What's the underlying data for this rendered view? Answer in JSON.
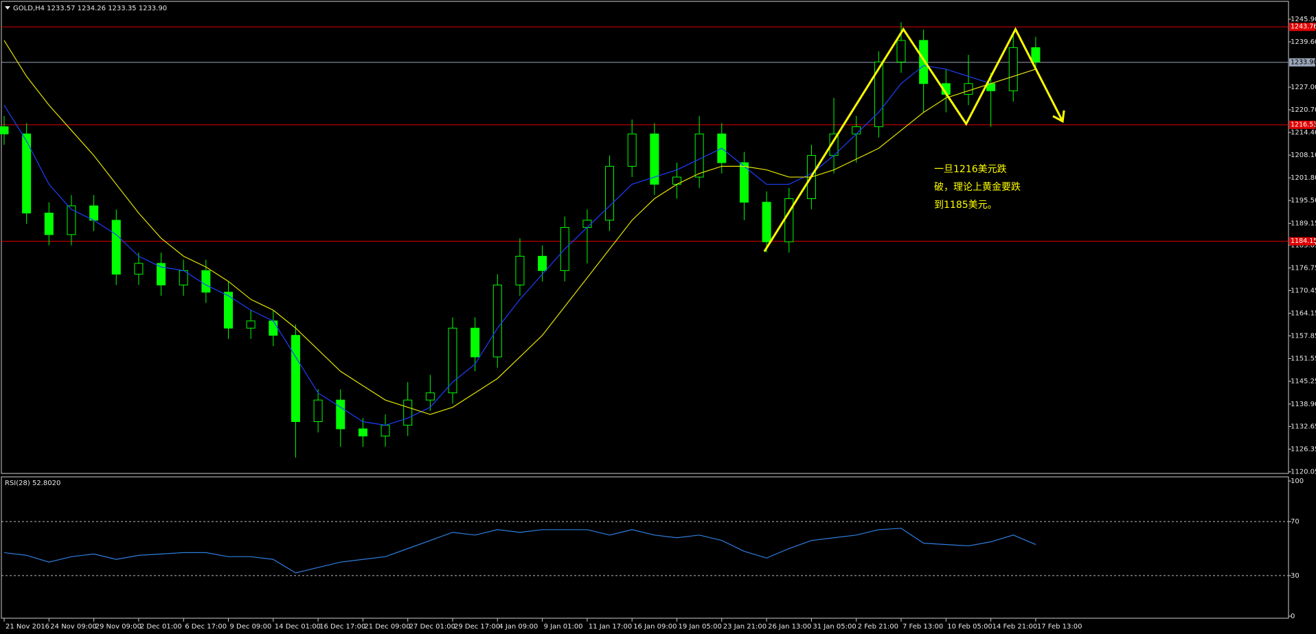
{
  "chart_data": [
    {
      "type": "candlestick",
      "title": "GOLD,H4 1233.57 1234.26 1233.35 1233.90",
      "categories": [
        "21 Nov 2016",
        null,
        "24 Nov 09:00",
        null,
        "29 Nov 09:00",
        null,
        "2 Dec 01:00",
        null,
        "6 Dec 17:00",
        null,
        "9 Dec 09:00",
        null,
        "14 Dec 01:00",
        null,
        "16 Dec 17:00",
        null,
        "21 Dec 09:00",
        null,
        "27 Dec 01:00",
        null,
        "29 Dec 17:00",
        null,
        "4 Jan 09:00",
        null,
        "9 Jan 01:00",
        null,
        "11 Jan 17:00",
        null,
        "16 Jan 09:00",
        null,
        "19 Jan 05:00",
        null,
        "23 Jan 21:00",
        null,
        "26 Jan 13:00",
        null,
        "31 Jan 05:00",
        null,
        "2 Feb 21:00",
        null,
        "7 Feb 13:00",
        null,
        "10 Feb 05:00",
        null,
        "14 Feb 21:00",
        null,
        "17 Feb 13:00"
      ],
      "open": [
        1216,
        1214,
        1192,
        1186,
        1194,
        1190,
        1175,
        1178,
        1172,
        1176,
        1170,
        1160,
        1162,
        1158,
        1134,
        1140,
        1132,
        1130,
        1133,
        1140,
        1142,
        1160,
        1152,
        1172,
        1180,
        1176,
        1188,
        1190,
        1205,
        1214,
        1200,
        1202,
        1214,
        1206,
        1195,
        1184,
        1196,
        1208,
        1214,
        1216,
        1234,
        1240,
        1228,
        1225,
        1228,
        1226,
        1238
      ],
      "high": [
        1219,
        1217,
        1195,
        1197,
        1197,
        1193,
        1181,
        1181,
        1179,
        1179,
        1173,
        1165,
        1165,
        1161,
        1143,
        1143,
        1135,
        1136,
        1145,
        1147,
        1163,
        1163,
        1175,
        1185,
        1183,
        1191,
        1193,
        1208,
        1218,
        1217,
        1206,
        1219,
        1217,
        1209,
        1198,
        1199,
        1211,
        1224,
        1219,
        1237,
        1245,
        1243,
        1232,
        1236,
        1231,
        1242,
        1241
      ],
      "low": [
        1211,
        1189,
        1183,
        1183,
        1187,
        1172,
        1172,
        1169,
        1169,
        1167,
        1157,
        1157,
        1155,
        1124,
        1131,
        1127,
        1127,
        1127,
        1130,
        1137,
        1139,
        1148,
        1149,
        1169,
        1173,
        1173,
        1178,
        1187,
        1202,
        1197,
        1196,
        1199,
        1203,
        1190,
        1181,
        1181,
        1193,
        1203,
        1206,
        1213,
        1231,
        1220,
        1220,
        1222,
        1216,
        1223,
        1232
      ],
      "close": [
        1214,
        1192,
        1186,
        1194,
        1190,
        1175,
        1178,
        1172,
        1176,
        1170,
        1160,
        1162,
        1158,
        1134,
        1140,
        1132,
        1130,
        1133,
        1140,
        1142,
        1160,
        1152,
        1172,
        1180,
        1176,
        1188,
        1190,
        1205,
        1214,
        1200,
        1202,
        1214,
        1206,
        1195,
        1184,
        1196,
        1208,
        1214,
        1216,
        1234,
        1240,
        1228,
        1225,
        1228,
        1226,
        1238,
        1234
      ],
      "up_color": "#00ff00",
      "down_color": "#00ff00",
      "moving_averages": [
        {
          "color": "#1f3fff",
          "values": [
            1222,
            1212,
            1200,
            1193,
            1190,
            1186,
            1180,
            1177,
            1176,
            1172,
            1169,
            1165,
            1162,
            1152,
            1142,
            1138,
            1134,
            1133,
            1135,
            1138,
            1145,
            1150,
            1160,
            1168,
            1175,
            1182,
            1188,
            1194,
            1200,
            1202,
            1204,
            1207,
            1210,
            1205,
            1200,
            1200,
            1203,
            1208,
            1214,
            1220,
            1228,
            1233,
            1232,
            1230,
            1228,
            1230,
            1232
          ]
        },
        {
          "color": "#e6e600",
          "values": [
            1240,
            1230,
            1222,
            1215,
            1208,
            1200,
            1192,
            1185,
            1180,
            1177,
            1173,
            1168,
            1165,
            1160,
            1154,
            1148,
            1144,
            1140,
            1138,
            1136,
            1138,
            1142,
            1146,
            1152,
            1158,
            1166,
            1174,
            1182,
            1190,
            1196,
            1200,
            1203,
            1205,
            1205,
            1204,
            1202,
            1202,
            1204,
            1207,
            1210,
            1215,
            1220,
            1224,
            1226,
            1228,
            1230,
            1232
          ]
        }
      ],
      "hlines": [
        {
          "value": 1243.76,
          "color": "#e00000"
        },
        {
          "value": 1233.9,
          "label": "1233.90",
          "color": "#9aa6b8"
        },
        {
          "value": 1216.53,
          "color": "#e00000"
        },
        {
          "value": 1184.15,
          "color": "#e00000"
        }
      ],
      "pattern": {
        "color": "#ffff00",
        "x": [
          33.9,
          40.1,
          42.9,
          45.1,
          47.2
        ],
        "values": [
          1181.3,
          1243.1,
          1216.8,
          1243.1,
          1217.5
        ]
      },
      "annotations": [
        "一旦1216美元跌",
        "破，理论上黄金要跌",
        "到1185美元。"
      ],
      "ylim": [
        1119.6,
        1247.8
      ],
      "yticks": [
        {
          "value": 1245.9,
          "label": "1245.90"
        },
        {
          "value": 1239.6,
          "label": "1239.60"
        },
        {
          "value": 1227.0,
          "label": "1227.00"
        },
        {
          "value": 1220.7,
          "label": "1220.70"
        },
        {
          "value": 1214.4,
          "label": "1214.40"
        },
        {
          "value": 1208.1,
          "label": "1208.10"
        },
        {
          "value": 1201.8,
          "label": "1201.80"
        },
        {
          "value": 1195.5,
          "label": "1195.50"
        },
        1189.15,
        1183.05,
        1176.75,
        1170.45,
        1164.15,
        1157.85,
        1151.55,
        1145.25,
        {
          "value": 1138.9,
          "label": "1138.90"
        },
        1132.65,
        1126.35,
        1120.05
      ]
    },
    {
      "type": "line",
      "title": "RSI(28) 52.8020",
      "color": "#2f7fe0",
      "values": [
        47,
        45,
        40,
        44,
        46,
        42,
        45,
        46,
        47,
        47,
        44,
        44,
        42,
        32,
        36,
        40,
        42,
        44,
        50,
        56,
        62,
        60,
        64,
        62,
        64,
        64,
        64,
        60,
        64,
        60,
        58,
        60,
        56,
        48,
        43,
        50,
        56,
        58,
        60,
        64,
        65,
        54,
        53,
        52,
        55,
        60,
        53
      ],
      "ylim": [
        0,
        100
      ],
      "yticks": [
        100,
        70,
        30,
        0
      ],
      "levels": [
        70,
        30
      ]
    }
  ]
}
